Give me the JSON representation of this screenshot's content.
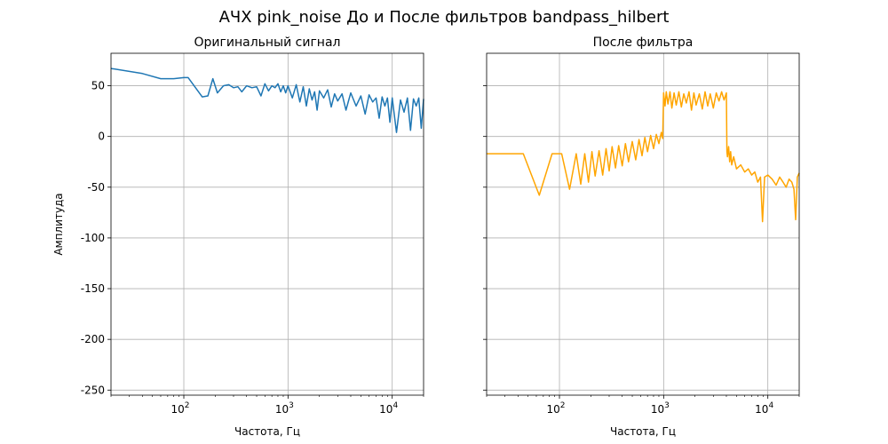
{
  "figure": {
    "suptitle": "АЧХ pink_noise До и После фильтров bandpass_hilbert"
  },
  "chart_data": [
    {
      "type": "line",
      "title": "Оригинальный сигнал",
      "xlabel": "Частота, Гц",
      "ylabel": "Амплитуда",
      "xscale": "log",
      "xlim": [
        20,
        20000
      ],
      "ylim": [
        -255,
        82
      ],
      "xticks": [
        {
          "value": 100,
          "base": "10",
          "exp": "2"
        },
        {
          "value": 1000,
          "base": "10",
          "exp": "3"
        },
        {
          "value": 10000,
          "base": "10",
          "exp": "4"
        }
      ],
      "yticks": [
        50,
        0,
        -50,
        -100,
        -150,
        -200,
        -250
      ],
      "grid": true,
      "series": [
        {
          "color": "#1f77b4",
          "x": [
            20,
            40,
            60,
            80,
            100,
            110,
            150,
            170,
            190,
            210,
            240,
            270,
            300,
            330,
            360,
            400,
            450,
            500,
            550,
            600,
            650,
            700,
            750,
            800,
            850,
            900,
            950,
            1000,
            1100,
            1200,
            1300,
            1400,
            1500,
            1600,
            1700,
            1800,
            1900,
            2000,
            2200,
            2400,
            2600,
            2800,
            3000,
            3300,
            3600,
            4000,
            4500,
            5000,
            5500,
            6000,
            6500,
            7000,
            7500,
            8000,
            8500,
            9000,
            9500,
            10000,
            11000,
            12000,
            13000,
            14000,
            15000,
            16000,
            17000,
            18000,
            19000,
            20000
          ],
          "y": [
            67,
            62,
            57,
            57,
            58,
            58,
            39,
            40,
            57,
            43,
            50,
            51,
            48,
            49,
            44,
            50,
            48,
            49,
            40,
            52,
            45,
            50,
            48,
            52,
            44,
            50,
            43,
            50,
            38,
            51,
            34,
            49,
            30,
            47,
            36,
            44,
            26,
            45,
            38,
            46,
            29,
            42,
            35,
            42,
            26,
            43,
            30,
            40,
            22,
            41,
            34,
            38,
            18,
            39,
            30,
            38,
            14,
            38,
            4,
            36,
            24,
            38,
            6,
            37,
            30,
            38,
            8,
            37
          ]
        }
      ]
    },
    {
      "type": "line",
      "title": "После фильтра",
      "xlabel": "Частота, Гц",
      "ylabel": "",
      "xscale": "log",
      "xlim": [
        20,
        20000
      ],
      "ylim": [
        -255,
        82
      ],
      "xticks": [
        {
          "value": 100,
          "base": "10",
          "exp": "2"
        },
        {
          "value": 1000,
          "base": "10",
          "exp": "3"
        },
        {
          "value": 10000,
          "base": "10",
          "exp": "4"
        }
      ],
      "grid": true,
      "series": [
        {
          "color": "#ffa500",
          "x": [
            20,
            45,
            64,
            85,
            105,
            125,
            145,
            160,
            175,
            190,
            205,
            220,
            240,
            260,
            280,
            300,
            320,
            345,
            370,
            400,
            430,
            460,
            500,
            540,
            580,
            620,
            660,
            700,
            750,
            800,
            850,
            900,
            950,
            980,
            1000,
            1030,
            1060,
            1100,
            1150,
            1200,
            1260,
            1320,
            1400,
            1480,
            1560,
            1650,
            1750,
            1850,
            1950,
            2050,
            2200,
            2350,
            2500,
            2650,
            2800,
            3000,
            3200,
            3400,
            3600,
            3800,
            4000,
            4050,
            4100,
            4200,
            4300,
            4400,
            4500,
            4700,
            5000,
            5500,
            6000,
            6500,
            7000,
            7500,
            8000,
            8500,
            8900,
            9300,
            10000,
            11000,
            12000,
            13000,
            14000,
            15000,
            16000,
            17000,
            17800,
            18500,
            19200,
            20000
          ],
          "y": [
            -17,
            -17,
            -58,
            -17,
            -17,
            -52,
            -17,
            -47,
            -17,
            -45,
            -15,
            -39,
            -14,
            -38,
            -12,
            -34,
            -10,
            -31,
            -9,
            -29,
            -7,
            -25,
            -5,
            -23,
            -3,
            -19,
            -1,
            -15,
            1,
            -12,
            2,
            -7,
            4,
            -2,
            43,
            30,
            44,
            32,
            44,
            28,
            43,
            31,
            44,
            29,
            42,
            33,
            44,
            26,
            43,
            31,
            42,
            27,
            44,
            30,
            42,
            28,
            43,
            35,
            44,
            36,
            43,
            -15,
            -20,
            -10,
            -25,
            -15,
            -28,
            -20,
            -32,
            -28,
            -35,
            -32,
            -38,
            -35,
            -45,
            -40,
            -84,
            -40,
            -38,
            -42,
            -48,
            -40,
            -45,
            -50,
            -42,
            -45,
            -52,
            -82,
            -40,
            -36
          ]
        }
      ]
    }
  ]
}
